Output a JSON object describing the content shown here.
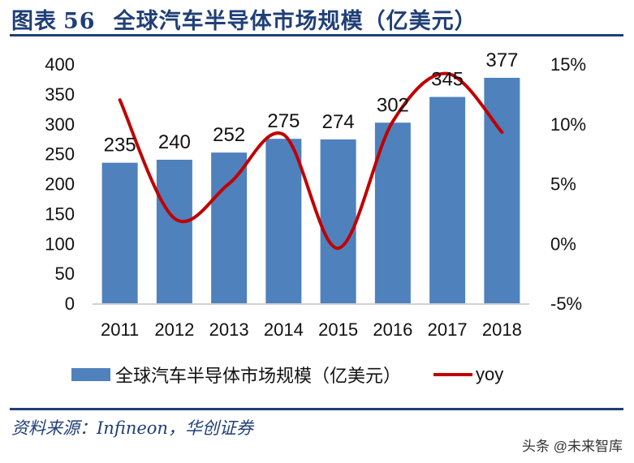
{
  "header": {
    "figure_label": "图表",
    "figure_number": "56",
    "title": "全球汽车半导体市场规模（亿美元）"
  },
  "footer": {
    "source": "资料来源：Infineon，华创证券",
    "watermark": "头条 @未来智库"
  },
  "legend": {
    "bar_label": "全球汽车半导体市场规模（亿美元）",
    "line_label": "yoy"
  },
  "colors": {
    "bar": "#4f81bd",
    "line": "#c00000",
    "title": "#1f3f77"
  },
  "chart_data": {
    "type": "bar+line",
    "title": "全球汽车半导体市场规模（亿美元）",
    "categories": [
      "2011",
      "2012",
      "2013",
      "2014",
      "2015",
      "2016",
      "2017",
      "2018"
    ],
    "series": [
      {
        "name": "全球汽车半导体市场规模（亿美元）",
        "type": "bar",
        "axis": "left",
        "values": [
          235,
          240,
          252,
          275,
          274,
          302,
          345,
          377
        ]
      },
      {
        "name": "yoy",
        "type": "line",
        "axis": "right",
        "unit": "%",
        "values": [
          12.0,
          2.1,
          5.0,
          9.1,
          -0.4,
          10.2,
          14.2,
          9.3
        ]
      }
    ],
    "y_left": {
      "ticks": [
        "0",
        "50",
        "100",
        "150",
        "200",
        "250",
        "300",
        "350",
        "400"
      ],
      "ylim": [
        0,
        400
      ]
    },
    "y_right": {
      "ticks": [
        "-5%",
        "0%",
        "5%",
        "10%",
        "15%"
      ],
      "ylim": [
        -5,
        15
      ]
    },
    "data_labels": [
      "235",
      "240",
      "252",
      "275",
      "274",
      "302",
      "345",
      "377"
    ],
    "legend_position": "bottom",
    "grid": false
  }
}
